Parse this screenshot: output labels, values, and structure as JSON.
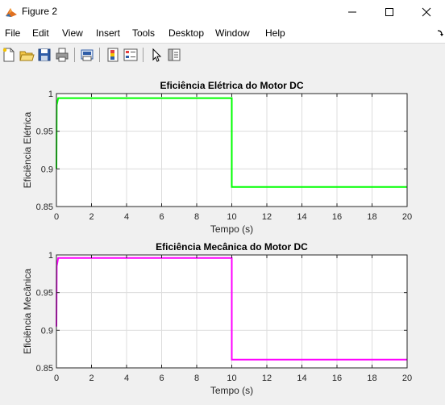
{
  "window": {
    "title": "Figure 2"
  },
  "menu": [
    "File",
    "Edit",
    "View",
    "Insert",
    "Tools",
    "Desktop",
    "Window",
    "Help"
  ],
  "toolbar": {
    "icons": [
      "new-figure-icon",
      "open-file-icon",
      "save-icon",
      "print-icon",
      "link-plot-icon",
      "insert-colorbar-icon",
      "insert-legend-icon",
      "edit-plot-icon",
      "property-inspector-icon"
    ]
  },
  "colors": {
    "series1": "#00ff00",
    "series2": "#ff00ff",
    "grid": "#dcdcdc",
    "axes_bg": "#ffffff"
  },
  "chart_data": [
    {
      "type": "line",
      "title": "Eficiência Elétrica do Motor DC",
      "xlabel": "Tempo (s)",
      "ylabel": "Eficiência Elétrica",
      "xlim": [
        0,
        20
      ],
      "ylim": [
        0.85,
        1
      ],
      "xticks": [
        "0",
        "2",
        "4",
        "6",
        "8",
        "10",
        "12",
        "14",
        "16",
        "18",
        "20"
      ],
      "yticks": [
        "0.85",
        "0.9",
        "0.95",
        "1"
      ],
      "grid": true,
      "series": [
        {
          "color": "#00ff00",
          "x": [
            0,
            0.02,
            0.1,
            10,
            10,
            20
          ],
          "y": [
            0.9,
            0.985,
            0.994,
            0.994,
            0.876,
            0.876
          ]
        }
      ]
    },
    {
      "type": "line",
      "title": "Eficiência Mecânica do Motor DC",
      "xlabel": "Tempo (s)",
      "ylabel": "Eficiência Mecânica",
      "xlim": [
        0,
        20
      ],
      "ylim": [
        0.85,
        1
      ],
      "xticks": [
        "0",
        "2",
        "4",
        "6",
        "8",
        "10",
        "12",
        "14",
        "16",
        "18",
        "20"
      ],
      "yticks": [
        "0.85",
        "0.9",
        "0.95",
        "1"
      ],
      "grid": true,
      "series": [
        {
          "color": "#ff00ff",
          "x": [
            0,
            0.02,
            0.1,
            10,
            10,
            20
          ],
          "y": [
            0.905,
            0.985,
            0.996,
            0.996,
            0.861,
            0.861
          ]
        }
      ]
    }
  ]
}
